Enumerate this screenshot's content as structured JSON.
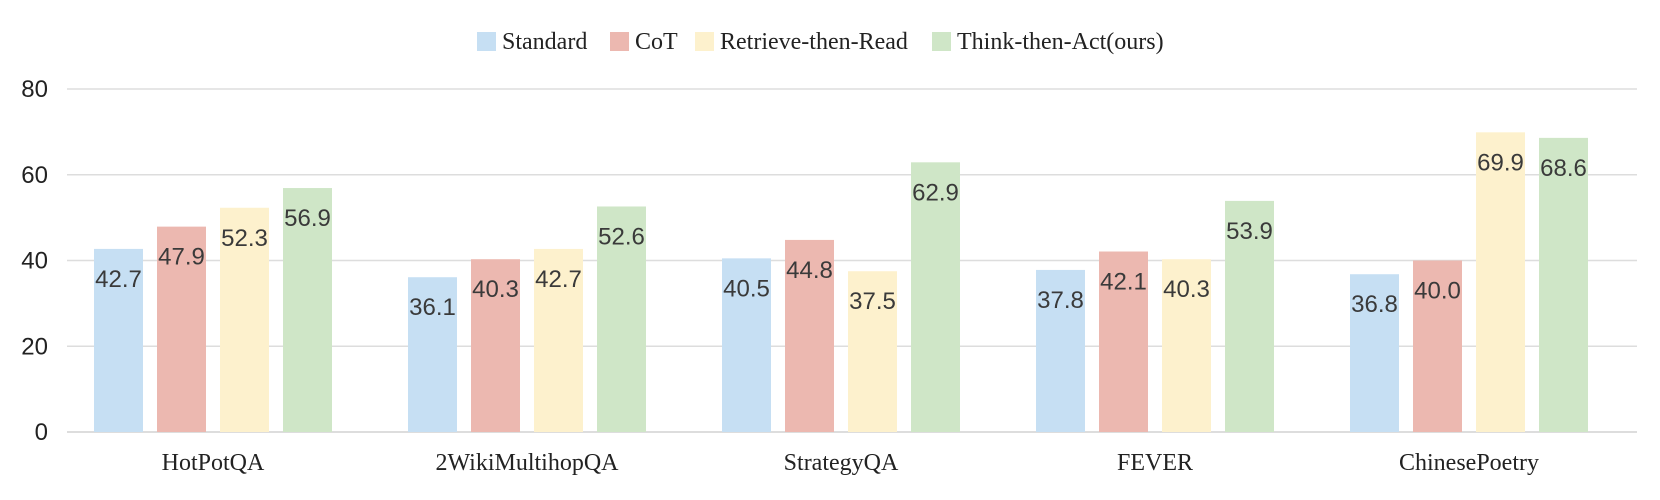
{
  "chart_data": {
    "type": "bar",
    "title": "",
    "xlabel": "",
    "ylabel": "",
    "categories": [
      "HotPotQA",
      "2WikiMultihopQA",
      "StrategyQA",
      "FEVER",
      "ChinesePoetry"
    ],
    "series": [
      {
        "name": "Standard",
        "color": "#c6dff3",
        "values": [
          42.7,
          36.1,
          40.5,
          37.8,
          36.8
        ],
        "labels": [
          "42.7",
          "36.1",
          "40.5",
          "37.8",
          "36.8"
        ]
      },
      {
        "name": "CoT",
        "color": "#ecb8b0",
        "values": [
          47.9,
          40.3,
          44.8,
          42.1,
          40.0
        ],
        "labels": [
          "47.9",
          "40.3",
          "44.8",
          "42.1",
          "40.0"
        ]
      },
      {
        "name": "Retrieve-then-Read",
        "color": "#fdf1cd",
        "values": [
          52.3,
          42.7,
          37.5,
          40.3,
          69.9
        ],
        "labels": [
          "52.3",
          "42.7",
          "37.5",
          "40.3",
          "69.9"
        ]
      },
      {
        "name": "Think-then-Act(ours)",
        "color": "#cfe6c7",
        "values": [
          56.9,
          52.6,
          62.9,
          53.9,
          68.6
        ],
        "labels": [
          "56.9",
          "52.6",
          "62.9",
          "53.9",
          "68.6"
        ]
      }
    ],
    "ylim": [
      0,
      80
    ],
    "yticks": [
      "0",
      "20",
      "40",
      "60",
      "80"
    ],
    "grid": true,
    "legend_position": "top-center",
    "gridline_color": "#dddddd"
  }
}
